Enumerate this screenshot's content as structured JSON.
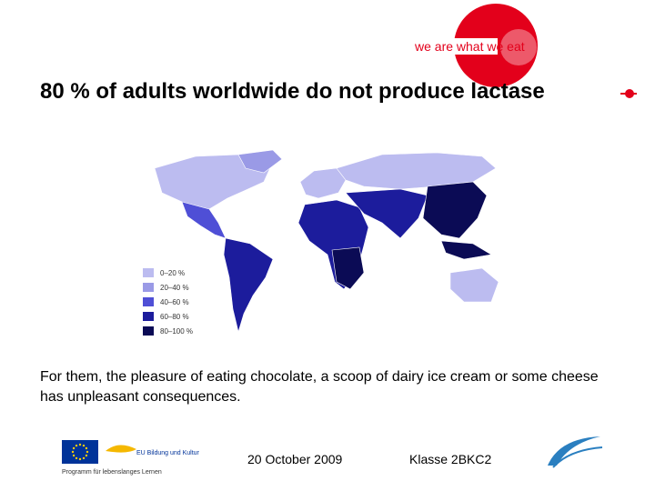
{
  "header": {
    "logo_text": "we are what we eat",
    "title": "80 % of adults worldwide do not produce lactase"
  },
  "map": {
    "legend": [
      {
        "label": "0–20 %",
        "color": "#bcbcf0"
      },
      {
        "label": "20–40 %",
        "color": "#9a9ae6"
      },
      {
        "label": "40–60 %",
        "color": "#4f4fd6"
      },
      {
        "label": "60–80 %",
        "color": "#1c1c9c"
      },
      {
        "label": "80–100 %",
        "color": "#0b0b55"
      }
    ]
  },
  "body": {
    "text": "For them, the pleasure of eating chocolate, a scoop of dairy ice cream or some cheese has unpleasant consequences."
  },
  "footer": {
    "date": "20 October 2009",
    "class": "Klasse 2BKC2",
    "eu_caption": "Programm für lebenslanges Lernen",
    "eu_sub": "EU Bildung und Kultur"
  }
}
